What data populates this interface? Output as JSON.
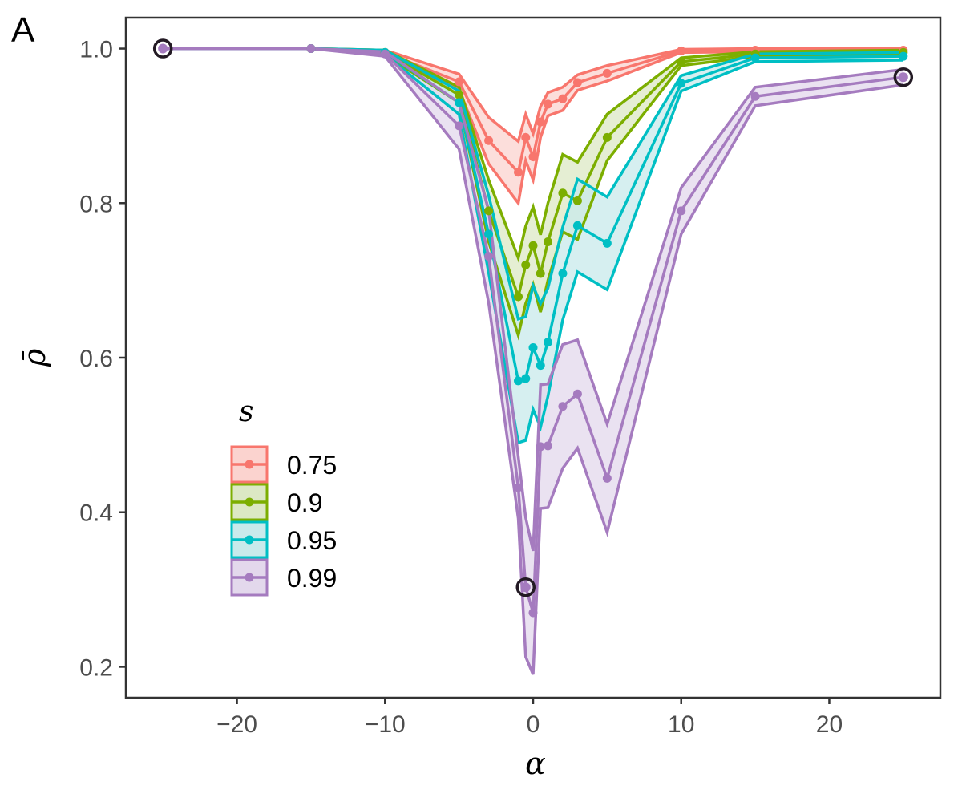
{
  "chart_data": {
    "type": "line",
    "panel_label": "A",
    "xlabel": "α",
    "ylabel": "ρ̄",
    "xlim": [
      -27.5,
      27.5
    ],
    "ylim": [
      0.16,
      1.04
    ],
    "xticks": [
      -20,
      -10,
      0,
      10,
      20
    ],
    "xtick_labels": [
      "−20",
      "−10",
      "0",
      "10",
      "20"
    ],
    "yticks": [
      0.2,
      0.4,
      0.6,
      0.8,
      1.0
    ],
    "ytick_labels": [
      "0.2",
      "0.4",
      "0.6",
      "0.8",
      "1.0"
    ],
    "grid": false,
    "legend": {
      "title": "s",
      "placement": "bottom-left"
    },
    "x": [
      -25,
      -15,
      -10,
      -5,
      -3,
      -1,
      -0.5,
      0,
      0.5,
      1,
      2,
      3,
      5,
      10,
      15,
      25
    ],
    "series": [
      {
        "name": "0.75",
        "color": "#F8766D",
        "fill": "#FBD3CF",
        "values": [
          1.0,
          1.0,
          0.995,
          0.957,
          0.881,
          0.84,
          0.885,
          0.86,
          0.905,
          0.928,
          0.935,
          0.956,
          0.968,
          0.997,
          0.998,
          0.998
        ],
        "ci_halfwidth": [
          0,
          0,
          0.003,
          0.01,
          0.03,
          0.04,
          0.03,
          0.03,
          0.02,
          0.015,
          0.015,
          0.01,
          0.01,
          0.002,
          0.002,
          0.002
        ]
      },
      {
        "name": "0.9",
        "color": "#7CAE00",
        "fill": "#DCE8C4",
        "values": [
          1.0,
          1.0,
          0.995,
          0.94,
          0.79,
          0.679,
          0.72,
          0.745,
          0.709,
          0.75,
          0.813,
          0.803,
          0.885,
          0.983,
          0.993,
          0.995
        ],
        "ci_halfwidth": [
          0,
          0,
          0.003,
          0.01,
          0.04,
          0.05,
          0.05,
          0.05,
          0.05,
          0.05,
          0.05,
          0.05,
          0.03,
          0.005,
          0.003,
          0.003
        ]
      },
      {
        "name": "0.95",
        "color": "#00BFC4",
        "fill": "#C8EAEB",
        "values": [
          1.0,
          1.0,
          0.995,
          0.93,
          0.76,
          0.57,
          0.573,
          0.613,
          0.59,
          0.62,
          0.709,
          0.771,
          0.748,
          0.955,
          0.988,
          0.99
        ],
        "ci_halfwidth": [
          0,
          0,
          0.003,
          0.015,
          0.05,
          0.08,
          0.08,
          0.08,
          0.08,
          0.07,
          0.06,
          0.06,
          0.06,
          0.01,
          0.005,
          0.005
        ]
      },
      {
        "name": "0.99",
        "color": "#A57BBF",
        "fill": "#E3D8EC",
        "values": [
          1.0,
          1.0,
          0.993,
          0.9,
          0.731,
          0.432,
          0.303,
          0.27,
          0.485,
          0.486,
          0.537,
          0.553,
          0.444,
          0.79,
          0.938,
          0.963
        ],
        "ci_halfwidth": [
          0,
          0,
          0.003,
          0.03,
          0.06,
          0.04,
          0.09,
          0.08,
          0.08,
          0.08,
          0.08,
          0.07,
          0.07,
          0.03,
          0.012,
          0.01
        ]
      }
    ],
    "highlighted_points": [
      {
        "series": "0.99",
        "x": -25,
        "y": 1.0
      },
      {
        "series": "0.99",
        "x": -0.5,
        "y": 0.303
      },
      {
        "series": "0.99",
        "x": 25,
        "y": 0.963
      }
    ]
  }
}
